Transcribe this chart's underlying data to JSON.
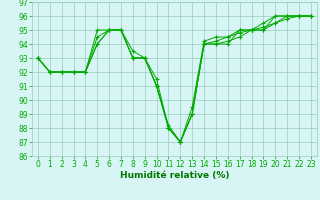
{
  "series": [
    [
      93,
      92,
      92,
      92,
      92,
      95,
      95,
      95,
      93,
      93,
      91,
      88,
      87,
      89,
      94,
      94,
      94,
      95,
      95,
      95,
      96,
      96,
      96,
      96
    ],
    [
      93,
      92,
      92,
      92,
      92,
      94,
      95,
      95,
      93,
      93,
      91,
      88.2,
      87,
      89.5,
      94.2,
      94.5,
      94.5,
      95,
      95,
      95.2,
      95.5,
      96,
      96,
      96
    ],
    [
      93,
      92,
      92,
      92,
      92,
      94.5,
      95,
      95,
      93.5,
      93,
      91.5,
      88,
      87,
      89,
      94,
      94.2,
      94.5,
      94.8,
      95,
      95.5,
      96,
      96,
      96,
      96
    ],
    [
      93,
      92,
      92,
      92,
      92,
      94,
      95,
      95,
      93,
      93,
      91,
      88,
      87,
      89,
      94,
      94,
      94.2,
      94.5,
      95,
      95,
      95.5,
      95.8,
      96,
      96
    ]
  ],
  "x": [
    0,
    1,
    2,
    3,
    4,
    5,
    6,
    7,
    8,
    9,
    10,
    11,
    12,
    13,
    14,
    15,
    16,
    17,
    18,
    19,
    20,
    21,
    22,
    23
  ],
  "line_color": "#00aa00",
  "marker": "+",
  "markersize": 3,
  "linewidth": 0.7,
  "markeredgewidth": 0.8,
  "bg_color": "#d8f5f5",
  "grid_color": "#99ccbb",
  "xlabel": "Humidité relative (%)",
  "xlabel_color": "#007700",
  "xlabel_fontsize": 6.5,
  "tick_fontsize": 5.5,
  "ylim": [
    86,
    97
  ],
  "xlim": [
    -0.5,
    23.5
  ],
  "yticks": [
    86,
    87,
    88,
    89,
    90,
    91,
    92,
    93,
    94,
    95,
    96,
    97
  ],
  "xticks": [
    0,
    1,
    2,
    3,
    4,
    5,
    6,
    7,
    8,
    9,
    10,
    11,
    12,
    13,
    14,
    15,
    16,
    17,
    18,
    19,
    20,
    21,
    22,
    23
  ]
}
